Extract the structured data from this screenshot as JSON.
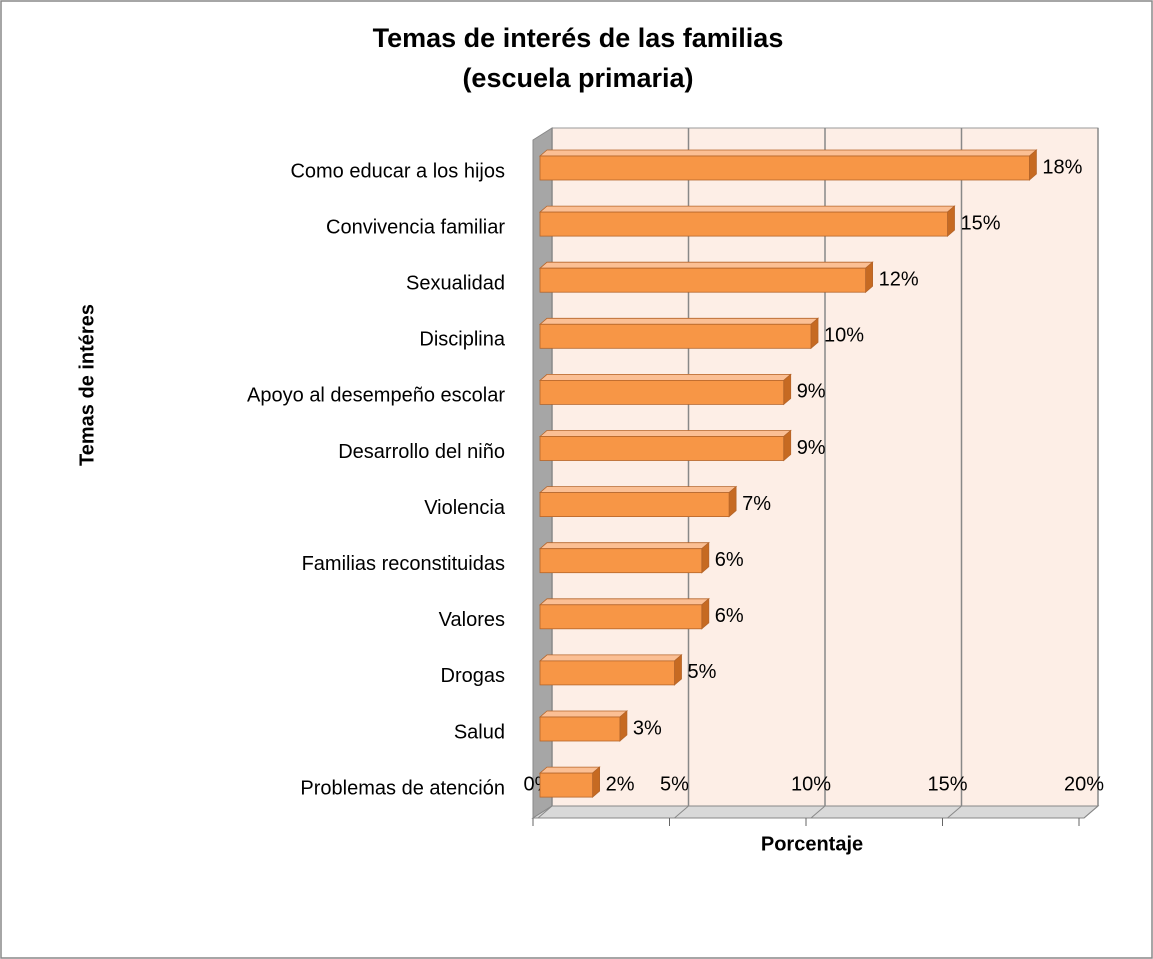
{
  "chart_data": {
    "type": "bar",
    "orientation": "horizontal",
    "title": [
      "Temas de interés de las familias",
      "(escuela primaria)"
    ],
    "y_label": "Temas de intéres",
    "x_label": "Porcentaje",
    "categories": [
      "Como educar a los hijos",
      "Convivencia familiar",
      "Sexualidad",
      "Disciplina",
      "Apoyo al desempeño escolar",
      "Desarrollo del niño",
      "Violencia",
      "Familias reconstituidas",
      "Valores",
      "Drogas",
      "Salud",
      "Problemas de atención"
    ],
    "values": [
      18,
      15,
      12,
      10,
      9,
      9,
      7,
      6,
      6,
      5,
      3,
      2
    ],
    "value_labels": [
      "18%",
      "15%",
      "12%",
      "10%",
      "9%",
      "9%",
      "7%",
      "6%",
      "6%",
      "5%",
      "3%",
      "2%"
    ],
    "color": "#f79646",
    "xlim": [
      0,
      20
    ],
    "xticks": [
      {
        "value": 0,
        "label": "0%"
      },
      {
        "value": 5,
        "label": "5%"
      },
      {
        "value": 10,
        "label": "10%"
      },
      {
        "value": 15,
        "label": "15%"
      },
      {
        "value": 20,
        "label": "20%"
      }
    ],
    "grid": true
  }
}
